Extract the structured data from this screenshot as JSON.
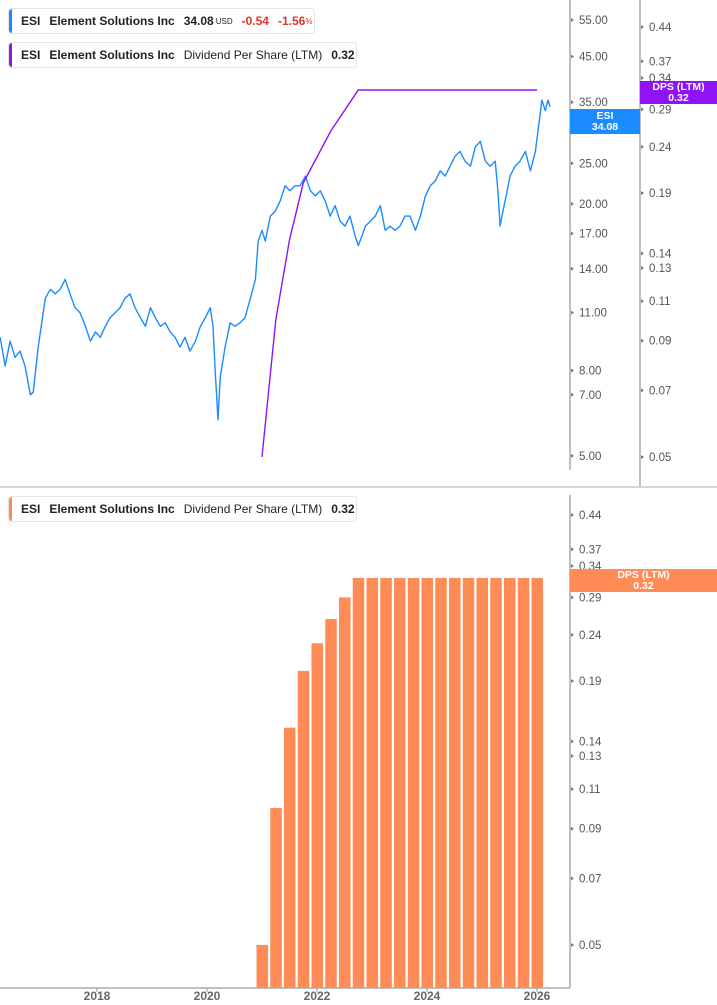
{
  "legend_price": {
    "ticker": "ESI",
    "name": "Element Solutions Inc",
    "price": "34.08",
    "currency": "USD",
    "change": "-0.54",
    "change_pct": "-1.56",
    "pct_sign": "%",
    "color": "#1a8cff"
  },
  "legend_dps_top": {
    "ticker": "ESI",
    "name": "Element Solutions Inc",
    "metric": "Dividend Per Share (LTM)",
    "value": "0.32",
    "color": "#8f13f5"
  },
  "legend_dps_bottom": {
    "ticker": "ESI",
    "name": "Element Solutions Inc",
    "metric": "Dividend Per Share (LTM)",
    "value": "0.32",
    "color": "#ff8c57"
  },
  "tags": {
    "price": {
      "label": "ESI",
      "value": "34.08"
    },
    "dps_top": {
      "label": "DPS (LTM)",
      "value": "0.32"
    },
    "dps_bottom": {
      "label": "DPS (LTM)",
      "value": "0.32"
    }
  },
  "chart_data": [
    {
      "type": "line",
      "title": "ESI price",
      "scale": "log",
      "yticks": [
        "55.00",
        "45.00",
        "35.00",
        "25.00",
        "20.00",
        "17.00",
        "14.00",
        "11.00",
        "8.00",
        "7.00",
        "5.00"
      ],
      "series": [
        {
          "name": "ESI",
          "color": "#1a8cff",
          "points": [
            [
              2016.24,
              9.6
            ],
            [
              2016.33,
              8.2
            ],
            [
              2016.42,
              9.4
            ],
            [
              2016.51,
              8.6
            ],
            [
              2016.6,
              8.9
            ],
            [
              2016.69,
              8.2
            ],
            [
              2016.79,
              7.0
            ],
            [
              2016.84,
              7.1
            ],
            [
              2016.93,
              9.1
            ],
            [
              2017.06,
              11.9
            ],
            [
              2017.15,
              12.5
            ],
            [
              2017.24,
              12.2
            ],
            [
              2017.33,
              12.5
            ],
            [
              2017.42,
              13.2
            ],
            [
              2017.51,
              12.2
            ],
            [
              2017.6,
              11.3
            ],
            [
              2017.69,
              11.0
            ],
            [
              2017.79,
              10.2
            ],
            [
              2017.88,
              9.4
            ],
            [
              2017.97,
              9.9
            ],
            [
              2018.06,
              9.6
            ],
            [
              2018.15,
              10.2
            ],
            [
              2018.24,
              10.7
            ],
            [
              2018.42,
              11.3
            ],
            [
              2018.51,
              11.9
            ],
            [
              2018.6,
              12.2
            ],
            [
              2018.69,
              11.3
            ],
            [
              2018.79,
              10.7
            ],
            [
              2018.88,
              10.2
            ],
            [
              2018.97,
              11.3
            ],
            [
              2019.06,
              10.7
            ],
            [
              2019.15,
              10.2
            ],
            [
              2019.24,
              10.4
            ],
            [
              2019.33,
              9.9
            ],
            [
              2019.42,
              9.6
            ],
            [
              2019.51,
              9.1
            ],
            [
              2019.6,
              9.6
            ],
            [
              2019.69,
              8.9
            ],
            [
              2019.79,
              9.4
            ],
            [
              2019.88,
              10.2
            ],
            [
              2019.97,
              10.7
            ],
            [
              2020.06,
              11.3
            ],
            [
              2020.11,
              10.2
            ],
            [
              2020.15,
              7.9
            ],
            [
              2020.2,
              6.1
            ],
            [
              2020.24,
              7.7
            ],
            [
              2020.33,
              9.1
            ],
            [
              2020.42,
              10.4
            ],
            [
              2020.51,
              10.2
            ],
            [
              2020.6,
              10.4
            ],
            [
              2020.69,
              10.7
            ],
            [
              2020.79,
              11.9
            ],
            [
              2020.88,
              13.2
            ],
            [
              2020.93,
              16.3
            ],
            [
              2021.0,
              17.3
            ],
            [
              2021.06,
              16.3
            ],
            [
              2021.15,
              18.7
            ],
            [
              2021.24,
              19.2
            ],
            [
              2021.33,
              20.3
            ],
            [
              2021.42,
              22.1
            ],
            [
              2021.51,
              21.5
            ],
            [
              2021.6,
              22.1
            ],
            [
              2021.69,
              22.1
            ],
            [
              2021.79,
              23.3
            ],
            [
              2021.88,
              21.5
            ],
            [
              2021.97,
              20.9
            ],
            [
              2022.06,
              21.5
            ],
            [
              2022.15,
              20.3
            ],
            [
              2022.24,
              18.7
            ],
            [
              2022.33,
              19.8
            ],
            [
              2022.42,
              18.2
            ],
            [
              2022.51,
              17.7
            ],
            [
              2022.6,
              18.7
            ],
            [
              2022.69,
              16.8
            ],
            [
              2022.75,
              15.9
            ],
            [
              2022.82,
              16.8
            ],
            [
              2022.88,
              17.7
            ],
            [
              2022.97,
              18.2
            ],
            [
              2023.06,
              18.7
            ],
            [
              2023.15,
              19.8
            ],
            [
              2023.24,
              17.3
            ],
            [
              2023.33,
              17.7
            ],
            [
              2023.42,
              17.3
            ],
            [
              2023.51,
              17.7
            ],
            [
              2023.6,
              18.7
            ],
            [
              2023.69,
              18.7
            ],
            [
              2023.79,
              17.3
            ],
            [
              2023.88,
              18.7
            ],
            [
              2023.97,
              20.9
            ],
            [
              2024.06,
              22.1
            ],
            [
              2024.15,
              22.7
            ],
            [
              2024.24,
              24.0
            ],
            [
              2024.33,
              23.3
            ],
            [
              2024.42,
              24.6
            ],
            [
              2024.51,
              26.0
            ],
            [
              2024.6,
              26.7
            ],
            [
              2024.69,
              25.3
            ],
            [
              2024.79,
              24.6
            ],
            [
              2024.88,
              27.4
            ],
            [
              2024.97,
              28.2
            ],
            [
              2025.06,
              25.3
            ],
            [
              2025.15,
              24.6
            ],
            [
              2025.24,
              25.3
            ],
            [
              2025.29,
              21.5
            ],
            [
              2025.33,
              17.7
            ],
            [
              2025.38,
              19.2
            ],
            [
              2025.44,
              20.9
            ],
            [
              2025.51,
              23.3
            ],
            [
              2025.6,
              24.6
            ],
            [
              2025.69,
              25.3
            ],
            [
              2025.79,
              26.7
            ],
            [
              2025.88,
              24.0
            ],
            [
              2025.97,
              26.7
            ],
            [
              2026.02,
              30.0
            ],
            [
              2026.09,
              35.4
            ],
            [
              2026.15,
              33.4
            ],
            [
              2026.2,
              35.4
            ],
            [
              2026.24,
              34.08
            ]
          ]
        }
      ]
    },
    {
      "type": "line",
      "title": "Dividend Per Share (LTM)",
      "scale": "log",
      "yticks": [
        "0.44",
        "0.37",
        "0.34",
        "0.29",
        "0.24",
        "0.19",
        "0.14",
        "0.13",
        "0.11",
        "0.09",
        "0.07",
        "0.05"
      ],
      "series": [
        {
          "name": "DPS (LTM)",
          "color": "#8f13f5",
          "points": [
            [
              2021.0,
              0.05
            ],
            [
              2021.25,
              0.1
            ],
            [
              2021.5,
              0.15
            ],
            [
              2021.75,
              0.2
            ],
            [
              2022.25,
              0.26
            ],
            [
              2022.75,
              0.32
            ],
            [
              2026.0,
              0.32
            ]
          ]
        }
      ]
    },
    {
      "type": "bar",
      "title": "Dividend Per Share (LTM)",
      "scale": "log",
      "xticks": [
        "2018",
        "2020",
        "2022",
        "2024",
        "2026"
      ],
      "yticks": [
        "0.44",
        "0.37",
        "0.34",
        "0.29",
        "0.24",
        "0.19",
        "0.14",
        "0.13",
        "0.11",
        "0.09",
        "0.07",
        "0.05"
      ],
      "x": [
        2021.0,
        2021.25,
        2021.5,
        2021.75,
        2022.0,
        2022.25,
        2022.5,
        2022.75,
        2023.0,
        2023.25,
        2023.5,
        2023.75,
        2024.0,
        2024.25,
        2024.5,
        2024.75,
        2025.0,
        2025.25,
        2025.5,
        2025.75,
        2026.0
      ],
      "values": [
        0.05,
        0.1,
        0.15,
        0.2,
        0.23,
        0.26,
        0.29,
        0.32,
        0.32,
        0.32,
        0.32,
        0.32,
        0.32,
        0.32,
        0.32,
        0.32,
        0.32,
        0.32,
        0.32,
        0.32,
        0.32
      ],
      "color": "#ff8c57"
    }
  ]
}
